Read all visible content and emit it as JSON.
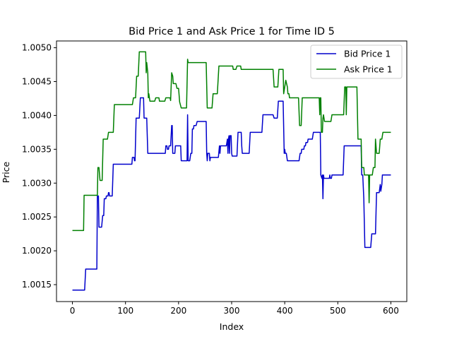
{
  "chart_data": {
    "type": "line",
    "title": "Bid Price 1 and Ask Price 1 for Time ID 5",
    "xlabel": "Index",
    "ylabel": "Price",
    "xlim": [
      -30,
      630
    ],
    "ylim": [
      1.00125,
      1.0051
    ],
    "xticks": [
      0,
      100,
      200,
      300,
      400,
      500,
      600
    ],
    "xtick_labels": [
      "0",
      "100",
      "200",
      "300",
      "400",
      "500",
      "600"
    ],
    "yticks": [
      1.0015,
      1.002,
      1.0025,
      1.003,
      1.0035,
      1.004,
      1.0045,
      1.005
    ],
    "ytick_labels": [
      "1.0015",
      "1.0020",
      "1.0025",
      "1.0030",
      "1.0035",
      "1.0040",
      "1.0045",
      "1.0050"
    ],
    "grid": false,
    "legend": "top-right",
    "series": [
      {
        "name": "Bid Price 1",
        "color": "#0000cc",
        "points": [
          [
            0,
            1.00142
          ],
          [
            23,
            1.00142
          ],
          [
            25,
            1.00173
          ],
          [
            46,
            1.00173
          ],
          [
            47,
            1.00281
          ],
          [
            49,
            1.00281
          ],
          [
            50,
            1.00235
          ],
          [
            55,
            1.00235
          ],
          [
            57,
            1.00252
          ],
          [
            59,
            1.00252
          ],
          [
            60,
            1.00277
          ],
          [
            63,
            1.00277
          ],
          [
            64,
            1.00281
          ],
          [
            67,
            1.00281
          ],
          [
            68,
            1.00286
          ],
          [
            69,
            1.00286
          ],
          [
            70,
            1.00281
          ],
          [
            75,
            1.00281
          ],
          [
            77,
            1.00328
          ],
          [
            112,
            1.00328
          ],
          [
            113,
            1.00338
          ],
          [
            116,
            1.00338
          ],
          [
            117,
            1.00333
          ],
          [
            118,
            1.00333
          ],
          [
            120,
            1.00396
          ],
          [
            126,
            1.00396
          ],
          [
            128,
            1.00426
          ],
          [
            134,
            1.00426
          ],
          [
            135,
            1.00396
          ],
          [
            140,
            1.00396
          ],
          [
            142,
            1.00344
          ],
          [
            175,
            1.00344
          ],
          [
            176,
            1.00355
          ],
          [
            178,
            1.00355
          ],
          [
            179,
            1.0035
          ],
          [
            181,
            1.0035
          ],
          [
            182,
            1.00355
          ],
          [
            185,
            1.00355
          ],
          [
            187,
            1.00385
          ],
          [
            188,
            1.00385
          ],
          [
            189,
            1.00344
          ],
          [
            193,
            1.00344
          ],
          [
            194,
            1.00355
          ],
          [
            204,
            1.00355
          ],
          [
            205,
            1.00333
          ],
          [
            216,
            1.00333
          ],
          [
            217,
            1.00401
          ],
          [
            218,
            1.00333
          ],
          [
            221,
            1.00333
          ],
          [
            223,
            1.00344
          ],
          [
            225,
            1.00344
          ],
          [
            226,
            1.0038
          ],
          [
            228,
            1.0038
          ],
          [
            229,
            1.00385
          ],
          [
            233,
            1.00385
          ],
          [
            235,
            1.00391
          ],
          [
            252,
            1.00391
          ],
          [
            253,
            1.00344
          ],
          [
            254,
            1.00333
          ],
          [
            255,
            1.00344
          ],
          [
            258,
            1.00344
          ],
          [
            259,
            1.00333
          ],
          [
            260,
            1.00338
          ],
          [
            275,
            1.00338
          ],
          [
            277,
            1.00355
          ],
          [
            278,
            1.00344
          ],
          [
            279,
            1.00355
          ],
          [
            290,
            1.00355
          ],
          [
            292,
            1.00365
          ],
          [
            293,
            1.00344
          ],
          [
            294,
            1.00365
          ],
          [
            295,
            1.0037
          ],
          [
            296,
            1.00344
          ],
          [
            297,
            1.0037
          ],
          [
            299,
            1.0037
          ],
          [
            300,
            1.00344
          ],
          [
            301,
            1.0034
          ],
          [
            310,
            1.0034
          ],
          [
            312,
            1.00375
          ],
          [
            318,
            1.00375
          ],
          [
            319,
            1.00355
          ],
          [
            320,
            1.00344
          ],
          [
            333,
            1.00344
          ],
          [
            335,
            1.00375
          ],
          [
            357,
            1.00375
          ],
          [
            359,
            1.00401
          ],
          [
            378,
            1.00401
          ],
          [
            380,
            1.00396
          ],
          [
            386,
            1.00396
          ],
          [
            388,
            1.00421
          ],
          [
            397,
            1.00421
          ],
          [
            399,
            1.00344
          ],
          [
            400,
            1.0035
          ],
          [
            401,
            1.00344
          ],
          [
            403,
            1.00344
          ],
          [
            405,
            1.00333
          ],
          [
            427,
            1.00333
          ],
          [
            429,
            1.00344
          ],
          [
            431,
            1.00344
          ],
          [
            432,
            1.0035
          ],
          [
            436,
            1.0035
          ],
          [
            437,
            1.00355
          ],
          [
            439,
            1.00355
          ],
          [
            440,
            1.0036
          ],
          [
            443,
            1.0036
          ],
          [
            444,
            1.00365
          ],
          [
            452,
            1.00365
          ],
          [
            454,
            1.00375
          ],
          [
            467,
            1.00375
          ],
          [
            468,
            1.00312
          ],
          [
            470,
            1.00307
          ],
          [
            471,
            1.00312
          ],
          [
            472,
            1.00277
          ],
          [
            473,
            1.00312
          ],
          [
            474,
            1.00307
          ],
          [
            484,
            1.00307
          ],
          [
            485,
            1.00312
          ],
          [
            486,
            1.00307
          ],
          [
            488,
            1.00307
          ],
          [
            489,
            1.00312
          ],
          [
            510,
            1.00312
          ],
          [
            512,
            1.00355
          ],
          [
            544,
            1.00355
          ],
          [
            545,
            1.00312
          ],
          [
            547,
            1.00312
          ],
          [
            549,
            1.00277
          ],
          [
            551,
            1.00205
          ],
          [
            562,
            1.00205
          ],
          [
            564,
            1.00225
          ],
          [
            571,
            1.00225
          ],
          [
            573,
            1.00286
          ],
          [
            578,
            1.00286
          ],
          [
            580,
            1.00298
          ],
          [
            581,
            1.00288
          ],
          [
            583,
            1.00298
          ],
          [
            584,
            1.00312
          ],
          [
            600,
            1.00312
          ]
        ]
      },
      {
        "name": "Ask Price 1",
        "color": "#008000",
        "points": [
          [
            0,
            1.0023
          ],
          [
            21,
            1.0023
          ],
          [
            22,
            1.00282
          ],
          [
            47,
            1.00282
          ],
          [
            48,
            1.00323
          ],
          [
            50,
            1.00323
          ],
          [
            52,
            1.00304
          ],
          [
            56,
            1.00304
          ],
          [
            58,
            1.00365
          ],
          [
            66,
            1.00365
          ],
          [
            68,
            1.00375
          ],
          [
            77,
            1.00375
          ],
          [
            79,
            1.00416
          ],
          [
            113,
            1.00416
          ],
          [
            115,
            1.00426
          ],
          [
            119,
            1.00426
          ],
          [
            121,
            1.00458
          ],
          [
            124,
            1.00458
          ],
          [
            126,
            1.00494
          ],
          [
            138,
            1.00494
          ],
          [
            139,
            1.00463
          ],
          [
            140,
            1.00478
          ],
          [
            142,
            1.00463
          ],
          [
            143,
            1.00426
          ],
          [
            144,
            1.00432
          ],
          [
            146,
            1.00421
          ],
          [
            155,
            1.00421
          ],
          [
            157,
            1.00426
          ],
          [
            163,
            1.00426
          ],
          [
            164,
            1.00421
          ],
          [
            174,
            1.00421
          ],
          [
            176,
            1.00426
          ],
          [
            184,
            1.00426
          ],
          [
            185,
            1.00422
          ],
          [
            187,
            1.00463
          ],
          [
            189,
            1.00458
          ],
          [
            190,
            1.00447
          ],
          [
            195,
            1.00447
          ],
          [
            197,
            1.0044
          ],
          [
            200,
            1.0044
          ],
          [
            202,
            1.0042
          ],
          [
            205,
            1.00411
          ],
          [
            215,
            1.00411
          ],
          [
            217,
            1.00483
          ],
          [
            218,
            1.00478
          ],
          [
            252,
            1.00478
          ],
          [
            254,
            1.00411
          ],
          [
            263,
            1.00411
          ],
          [
            265,
            1.00432
          ],
          [
            273,
            1.00432
          ],
          [
            276,
            1.00473
          ],
          [
            302,
            1.00473
          ],
          [
            303,
            1.00468
          ],
          [
            308,
            1.00468
          ],
          [
            310,
            1.00473
          ],
          [
            317,
            1.00473
          ],
          [
            318,
            1.00468
          ],
          [
            378,
            1.00468
          ],
          [
            380,
            1.00442
          ],
          [
            387,
            1.00442
          ],
          [
            389,
            1.00468
          ],
          [
            397,
            1.00468
          ],
          [
            398,
            1.00432
          ],
          [
            400,
            1.00442
          ],
          [
            402,
            1.00452
          ],
          [
            405,
            1.00442
          ],
          [
            406,
            1.00432
          ],
          [
            408,
            1.00432
          ],
          [
            409,
            1.00426
          ],
          [
            426,
            1.00426
          ],
          [
            428,
            1.00385
          ],
          [
            431,
            1.00385
          ],
          [
            433,
            1.00426
          ],
          [
            465,
            1.00426
          ],
          [
            466,
            1.00401
          ],
          [
            467,
            1.00426
          ],
          [
            468,
            1.00426
          ],
          [
            469,
            1.00375
          ],
          [
            471,
            1.00375
          ],
          [
            472,
            1.00396
          ],
          [
            473,
            1.00401
          ],
          [
            475,
            1.00391
          ],
          [
            487,
            1.00391
          ],
          [
            489,
            1.00401
          ],
          [
            511,
            1.00401
          ],
          [
            513,
            1.00442
          ],
          [
            515,
            1.00442
          ],
          [
            516,
            1.00401
          ],
          [
            517,
            1.00442
          ],
          [
            518,
            1.00442
          ],
          [
            519,
            1.00442
          ],
          [
            536,
            1.00442
          ],
          [
            538,
            1.00365
          ],
          [
            544,
            1.00365
          ],
          [
            545,
            1.00323
          ],
          [
            549,
            1.00323
          ],
          [
            550,
            1.00312
          ],
          [
            558,
            1.00312
          ],
          [
            559,
            1.00271
          ],
          [
            560,
            1.00312
          ],
          [
            565,
            1.00312
          ],
          [
            567,
            1.00323
          ],
          [
            570,
            1.00323
          ],
          [
            571,
            1.00365
          ],
          [
            573,
            1.00344
          ],
          [
            578,
            1.00344
          ],
          [
            580,
            1.00365
          ],
          [
            583,
            1.00365
          ],
          [
            585,
            1.00375
          ],
          [
            600,
            1.00375
          ]
        ]
      }
    ]
  }
}
